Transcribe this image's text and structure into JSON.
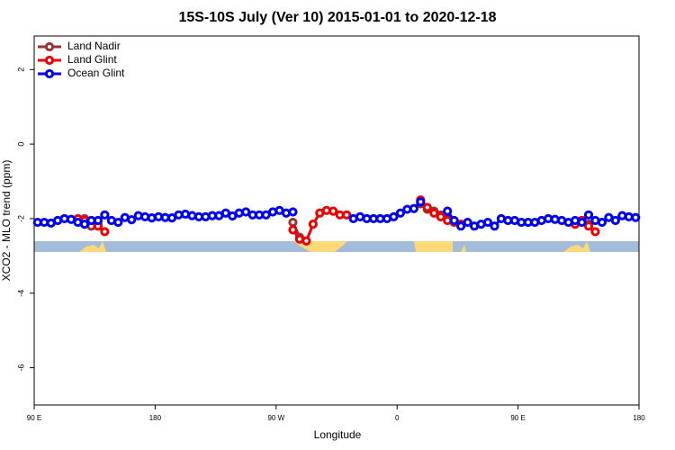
{
  "chart_data": {
    "type": "line",
    "title": "15S-10S July (Ver 10)   2015-01-01 to 2020-12-18",
    "x_label": "Longitude",
    "y_label": "XCO2 - MLO trend (ppm)",
    "xlim": [
      90,
      540
    ],
    "xticks": [
      {
        "value": 90,
        "label": "90 E"
      },
      {
        "value": 180,
        "label": "180"
      },
      {
        "value": 270,
        "label": "90 W"
      },
      {
        "value": 360,
        "label": "0"
      },
      {
        "value": 450,
        "label": "90 E"
      },
      {
        "value": 540,
        "label": "180"
      }
    ],
    "ylim": [
      -7,
      2.9
    ],
    "yticks": [
      2,
      0,
      -2,
      -4,
      -6
    ],
    "legend": "top-left",
    "x": [
      92.5,
      97.5,
      102.5,
      107.5,
      112.5,
      117.5,
      122.5,
      127.5,
      132.5,
      137.5,
      142.5,
      147.5,
      152.5,
      157.5,
      162.5,
      167.5,
      172.5,
      177.5,
      182.5,
      187.5,
      192.5,
      197.5,
      202.5,
      207.5,
      212.5,
      217.5,
      222.5,
      227.5,
      232.5,
      237.5,
      242.5,
      247.5,
      252.5,
      257.5,
      262.5,
      267.5,
      272.5,
      277.5,
      282.5,
      287.5,
      292.5,
      297.5,
      302.5,
      307.5,
      312.5,
      317.5,
      322.5,
      327.5,
      332.5,
      337.5,
      342.5,
      347.5,
      352.5,
      357.5,
      362.5,
      367.5,
      372.5,
      377.5,
      382.5,
      387.5,
      392.5,
      397.5,
      402.5,
      407.5,
      412.5,
      417.5,
      422.5,
      427.5,
      432.5,
      437.5,
      442.5,
      447.5,
      452.5,
      457.5,
      462.5,
      467.5,
      472.5,
      477.5,
      482.5,
      487.5,
      492.5,
      497.5,
      502.5,
      507.5,
      512.5,
      517.5,
      522.5,
      527.5,
      532.5,
      537.5
    ],
    "series": [
      {
        "name": "Land Nadir",
        "color": "#993333",
        "values": [
          null,
          null,
          null,
          null,
          null,
          null,
          null,
          -2.0,
          -2.2,
          -2.15,
          null,
          null,
          null,
          null,
          null,
          null,
          null,
          null,
          null,
          null,
          null,
          null,
          null,
          null,
          null,
          null,
          null,
          null,
          null,
          null,
          null,
          null,
          null,
          null,
          null,
          null,
          null,
          null,
          -2.1,
          -2.5,
          null,
          null,
          null,
          null,
          null,
          null,
          null,
          null,
          null,
          null,
          null,
          null,
          null,
          null,
          null,
          null,
          null,
          -1.6,
          -1.75,
          -1.8,
          -1.9,
          -2.0,
          null,
          null,
          null,
          null,
          null,
          null,
          null,
          null,
          null,
          null,
          null,
          null,
          null,
          null,
          null,
          null,
          null,
          null,
          -2.1,
          -2.05,
          -2.15,
          null,
          null,
          null,
          null,
          null,
          null,
          null
        ]
      },
      {
        "name": "Land Glint",
        "color": "#ee0000",
        "values": [
          null,
          null,
          null,
          null,
          null,
          null,
          -2.0,
          -2.05,
          null,
          -2.2,
          -2.35,
          null,
          null,
          null,
          null,
          null,
          null,
          null,
          null,
          null,
          null,
          null,
          null,
          null,
          null,
          null,
          null,
          null,
          null,
          null,
          null,
          null,
          null,
          null,
          null,
          null,
          null,
          null,
          -2.3,
          -2.55,
          -2.6,
          -2.15,
          -1.85,
          -1.78,
          -1.8,
          -1.9,
          -1.9,
          null,
          null,
          null,
          null,
          null,
          null,
          null,
          null,
          null,
          null,
          -1.5,
          -1.7,
          -1.85,
          -1.95,
          -2.05,
          -2.1,
          -2.15,
          null,
          null,
          null,
          null,
          null,
          null,
          null,
          null,
          null,
          null,
          null,
          null,
          null,
          null,
          null,
          null,
          -2.15,
          -2.05,
          -2.2,
          -2.35,
          null,
          null,
          null,
          null,
          null,
          null
        ]
      },
      {
        "name": "Ocean Glint",
        "color": "#0000ee",
        "values": [
          -2.1,
          -2.1,
          -2.12,
          -2.05,
          -2.0,
          -2.02,
          -2.1,
          -2.15,
          -2.05,
          -2.05,
          -1.9,
          -2.05,
          -2.1,
          -1.97,
          -2.03,
          -1.92,
          -1.95,
          -1.98,
          -1.95,
          -1.97,
          -1.98,
          -1.9,
          -1.88,
          -1.92,
          -1.95,
          -1.95,
          -1.92,
          -1.92,
          -1.85,
          -1.93,
          -1.85,
          -1.82,
          -1.9,
          -1.9,
          -1.9,
          -1.82,
          -1.78,
          -1.85,
          -1.82,
          null,
          null,
          null,
          null,
          null,
          null,
          null,
          null,
          -2.0,
          -1.95,
          -2.0,
          -2.0,
          -2.0,
          -2.0,
          -1.95,
          -1.85,
          -1.75,
          -1.73,
          -1.55,
          null,
          null,
          null,
          -1.8,
          -2.05,
          -2.2,
          -2.1,
          -2.2,
          -2.15,
          -2.1,
          -2.2,
          -2.0,
          -2.05,
          -2.05,
          -2.1,
          -2.1,
          -2.1,
          -2.05,
          -2.0,
          -2.02,
          -2.05,
          -2.1,
          -2.05,
          -2.1,
          -1.9,
          -2.05,
          -2.1,
          -1.97,
          -2.05,
          -1.92,
          -1.95,
          -1.97
        ]
      }
    ]
  }
}
